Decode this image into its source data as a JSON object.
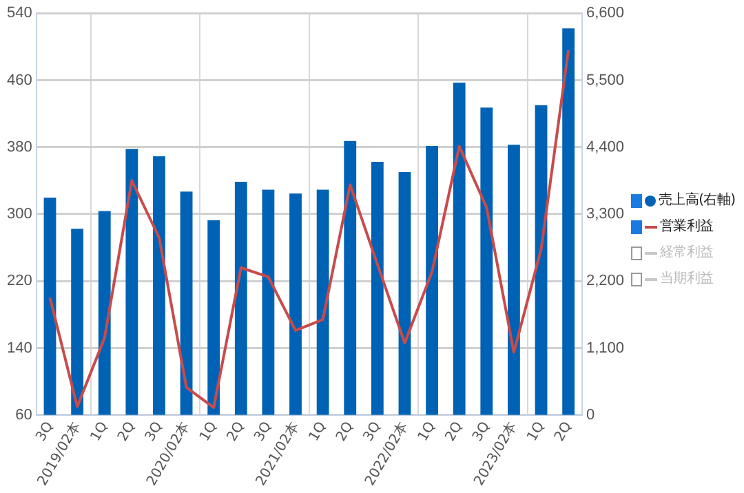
{
  "chart_data": {
    "type": "bar",
    "categories": [
      "3Q",
      "2019/02本",
      "1Q",
      "2Q",
      "3Q",
      "2020/02本",
      "1Q",
      "2Q",
      "3Q",
      "2021/02本",
      "1Q",
      "2Q",
      "3Q",
      "2022/02本",
      "1Q",
      "2Q",
      "3Q",
      "2023/02本",
      "1Q",
      "2Q"
    ],
    "series": [
      {
        "name": "売上高(右軸)",
        "axis": "y2",
        "color": "#0062b4",
        "values": [
          3570,
          3060,
          3350,
          4370,
          4250,
          3670,
          3200,
          3830,
          3700,
          3640,
          3700,
          4500,
          4160,
          3990,
          4420,
          5460,
          5050,
          4440,
          5090,
          6350
        ]
      },
      {
        "name": "営業利益",
        "type": "line",
        "color": "#c84b4b",
        "values": [
          200,
          70,
          152,
          340,
          272,
          93,
          69,
          236,
          225,
          161,
          174,
          335,
          240,
          146,
          231,
          381,
          308,
          135,
          258,
          496
        ]
      },
      {
        "name": "経常利益",
        "type": "line",
        "color": "#c8c8c8",
        "values": [
          null,
          null,
          null,
          null,
          null,
          null,
          null,
          null,
          null,
          null,
          null,
          null,
          null,
          null,
          null,
          null,
          null,
          null,
          null,
          null
        ]
      },
      {
        "name": "当期利益",
        "type": "line",
        "color": "#c8c8c8",
        "values": [
          null,
          null,
          null,
          null,
          null,
          null,
          null,
          null,
          null,
          null,
          null,
          null,
          null,
          null,
          null,
          null,
          null,
          null,
          null,
          null
        ]
      }
    ],
    "ylim": [
      60,
      540
    ],
    "yticks": [
      60,
      140,
      220,
      300,
      380,
      460,
      540
    ],
    "y2lim": [
      0,
      6600
    ],
    "y2ticks": [
      0,
      {
        "value": 1100,
        "label": "1,100"
      },
      {
        "value": 2200,
        "label": "2,200"
      },
      {
        "value": 3300,
        "label": "3,300"
      },
      {
        "value": 4400,
        "label": "4,400"
      },
      {
        "value": 5500,
        "label": "5,500"
      },
      {
        "value": 6600,
        "label": "6,600"
      }
    ],
    "grid": true,
    "legend": "right",
    "marker": "none"
  }
}
